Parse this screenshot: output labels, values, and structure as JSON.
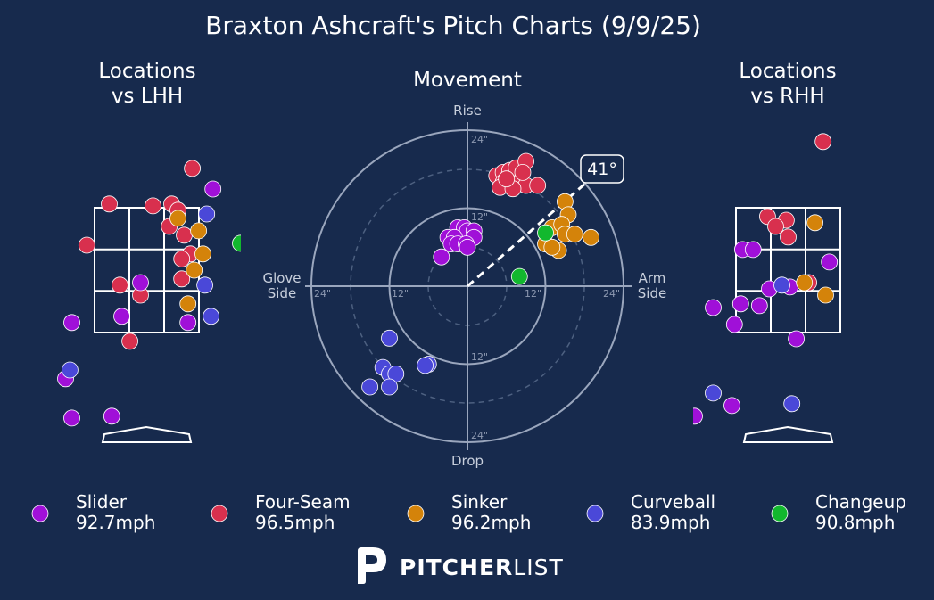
{
  "title": "Braxton Ashcraft's Pitch Charts (9/9/25)",
  "panels": {
    "lhh": {
      "title_line1": "Locations",
      "title_line2": "vs LHH"
    },
    "movement": {
      "title": "Movement"
    },
    "rhh": {
      "title_line1": "Locations",
      "title_line2": "vs RHH"
    }
  },
  "axis_labels": {
    "top": "Rise",
    "bottom": "Drop",
    "left_line1": "Glove",
    "left_line2": "Side",
    "right_line1": "Arm",
    "right_line2": "Side"
  },
  "ring_labels": {
    "top_24": "24\"",
    "top_12": "12\"",
    "bottom_12": "12\"",
    "bottom_24": "24\"",
    "left_24": "24\"",
    "left_12": "12\"",
    "right_12": "12\"",
    "right_24": "24\""
  },
  "arm_angle": {
    "label": "41°",
    "degrees": 41
  },
  "brand": {
    "bold": "PITCHER",
    "thin": "LIST"
  },
  "legend": [
    {
      "name": "Slider",
      "speed": "92.7mph",
      "color": "#a010d8"
    },
    {
      "name": "Four-Seam",
      "speed": "96.5mph",
      "color": "#d8304e"
    },
    {
      "name": "Sinker",
      "speed": "96.2mph",
      "color": "#d4830a"
    },
    {
      "name": "Curveball",
      "speed": "83.9mph",
      "color": "#4a48d8"
    },
    {
      "name": "Changeup",
      "speed": "90.8mph",
      "color": "#12b82e"
    }
  ],
  "colors": {
    "background": "#172a4d",
    "Slider": "#a010d8",
    "Four-Seam": "#d8304e",
    "Sinker": "#d4830a",
    "Curveball": "#4a48d8",
    "Changeup": "#12b82e"
  },
  "chart_data": [
    {
      "type": "scatter",
      "name": "Locations vs LHH",
      "units": "feet (plate_x, plate_z)",
      "strike_zone": {
        "x": [
          -0.83,
          0.83
        ],
        "z": [
          1.5,
          3.5
        ]
      },
      "points": [
        {
          "pitch": "Four-Seam",
          "x": 0.73,
          "z": 4.13
        },
        {
          "pitch": "Four-Seam",
          "x": -0.6,
          "z": 3.56
        },
        {
          "pitch": "Four-Seam",
          "x": 0.1,
          "z": 3.53
        },
        {
          "pitch": "Four-Seam",
          "x": 0.4,
          "z": 3.56
        },
        {
          "pitch": "Four-Seam",
          "x": 0.5,
          "z": 3.46
        },
        {
          "pitch": "Four-Seam",
          "x": 0.36,
          "z": 3.2
        },
        {
          "pitch": "Four-Seam",
          "x": 0.6,
          "z": 3.06
        },
        {
          "pitch": "Four-Seam",
          "x": -0.96,
          "z": 2.9
        },
        {
          "pitch": "Four-Seam",
          "x": 0.7,
          "z": 2.76
        },
        {
          "pitch": "Four-Seam",
          "x": 0.56,
          "z": 2.68
        },
        {
          "pitch": "Four-Seam",
          "x": -0.43,
          "z": 2.26
        },
        {
          "pitch": "Four-Seam",
          "x": 0.56,
          "z": 2.36
        },
        {
          "pitch": "Four-Seam",
          "x": -0.1,
          "z": 2.1
        },
        {
          "pitch": "Four-Seam",
          "x": -0.27,
          "z": 1.36
        },
        {
          "pitch": "Slider",
          "x": 1.06,
          "z": 3.8
        },
        {
          "pitch": "Slider",
          "x": -0.1,
          "z": 2.3
        },
        {
          "pitch": "Slider",
          "x": -0.4,
          "z": 1.76
        },
        {
          "pitch": "Slider",
          "x": 0.66,
          "z": 1.66
        },
        {
          "pitch": "Slider",
          "x": -1.2,
          "z": 1.66
        },
        {
          "pitch": "Slider",
          "x": -1.3,
          "z": 0.76
        },
        {
          "pitch": "Slider",
          "x": -1.2,
          "z": 0.13
        },
        {
          "pitch": "Slider",
          "x": -0.56,
          "z": 0.16
        },
        {
          "pitch": "Sinker",
          "x": 0.5,
          "z": 3.33
        },
        {
          "pitch": "Sinker",
          "x": 0.83,
          "z": 3.13
        },
        {
          "pitch": "Sinker",
          "x": 0.9,
          "z": 2.76
        },
        {
          "pitch": "Sinker",
          "x": 0.76,
          "z": 2.5
        },
        {
          "pitch": "Sinker",
          "x": 0.66,
          "z": 1.96
        },
        {
          "pitch": "Curveball",
          "x": 0.96,
          "z": 3.4
        },
        {
          "pitch": "Curveball",
          "x": 0.93,
          "z": 2.26
        },
        {
          "pitch": "Curveball",
          "x": 1.03,
          "z": 1.76
        },
        {
          "pitch": "Curveball",
          "x": -1.23,
          "z": 0.9
        },
        {
          "pitch": "Changeup",
          "x": 1.5,
          "z": 2.93
        }
      ]
    },
    {
      "type": "scatter",
      "name": "Movement",
      "units": "inches (horizontal break, induced vertical break)",
      "rings": [
        12,
        24
      ],
      "points": [
        {
          "pitch": "Four-Seam",
          "x": 4.5,
          "y": 17
        },
        {
          "pitch": "Four-Seam",
          "x": 5.5,
          "y": 17.5
        },
        {
          "pitch": "Four-Seam",
          "x": 6.5,
          "y": 17.8
        },
        {
          "pitch": "Four-Seam",
          "x": 7.5,
          "y": 18.2
        },
        {
          "pitch": "Four-Seam",
          "x": 9,
          "y": 19.2
        },
        {
          "pitch": "Four-Seam",
          "x": 5.5,
          "y": 16
        },
        {
          "pitch": "Four-Seam",
          "x": 6.5,
          "y": 15.5
        },
        {
          "pitch": "Four-Seam",
          "x": 8,
          "y": 16
        },
        {
          "pitch": "Four-Seam",
          "x": 9,
          "y": 15.5
        },
        {
          "pitch": "Four-Seam",
          "x": 10.8,
          "y": 15.5
        },
        {
          "pitch": "Four-Seam",
          "x": 5,
          "y": 15.2
        },
        {
          "pitch": "Four-Seam",
          "x": 7,
          "y": 15
        },
        {
          "pitch": "Four-Seam",
          "x": 6,
          "y": 16.5
        },
        {
          "pitch": "Four-Seam",
          "x": 8.5,
          "y": 17.5
        },
        {
          "pitch": "Slider",
          "x": -1.5,
          "y": 9
        },
        {
          "pitch": "Slider",
          "x": -0.5,
          "y": 9
        },
        {
          "pitch": "Slider",
          "x": 0,
          "y": 8.5
        },
        {
          "pitch": "Slider",
          "x": 1,
          "y": 8.5
        },
        {
          "pitch": "Slider",
          "x": -3,
          "y": 7.5
        },
        {
          "pitch": "Slider",
          "x": -2,
          "y": 7.5
        },
        {
          "pitch": "Slider",
          "x": 1,
          "y": 7.5
        },
        {
          "pitch": "Slider",
          "x": -2.5,
          "y": 6.5
        },
        {
          "pitch": "Slider",
          "x": -1.5,
          "y": 6.5
        },
        {
          "pitch": "Slider",
          "x": -0.2,
          "y": 6.5
        },
        {
          "pitch": "Slider",
          "x": 0,
          "y": 6
        },
        {
          "pitch": "Slider",
          "x": -4,
          "y": 4.5
        },
        {
          "pitch": "Sinker",
          "x": 15,
          "y": 13
        },
        {
          "pitch": "Sinker",
          "x": 15.5,
          "y": 11
        },
        {
          "pitch": "Sinker",
          "x": 13,
          "y": 9
        },
        {
          "pitch": "Sinker",
          "x": 14.5,
          "y": 9.5
        },
        {
          "pitch": "Sinker",
          "x": 15,
          "y": 8
        },
        {
          "pitch": "Sinker",
          "x": 16.5,
          "y": 8
        },
        {
          "pitch": "Sinker",
          "x": 19,
          "y": 7.5
        },
        {
          "pitch": "Sinker",
          "x": 12,
          "y": 6.5
        },
        {
          "pitch": "Sinker",
          "x": 14,
          "y": 5.5
        },
        {
          "pitch": "Sinker",
          "x": 13,
          "y": 6
        },
        {
          "pitch": "Curveball",
          "x": -12,
          "y": -8
        },
        {
          "pitch": "Curveball",
          "x": -13,
          "y": -12.5
        },
        {
          "pitch": "Curveball",
          "x": -12,
          "y": -13.5
        },
        {
          "pitch": "Curveball",
          "x": -11,
          "y": -13.5
        },
        {
          "pitch": "Curveball",
          "x": -6,
          "y": -12
        },
        {
          "pitch": "Curveball",
          "x": -6.5,
          "y": -12.2
        },
        {
          "pitch": "Curveball",
          "x": -15,
          "y": -15.5
        },
        {
          "pitch": "Curveball",
          "x": -12,
          "y": -15.5
        },
        {
          "pitch": "Changeup",
          "x": 12,
          "y": 8.2
        },
        {
          "pitch": "Changeup",
          "x": 8,
          "y": 1.5
        }
      ]
    },
    {
      "type": "scatter",
      "name": "Locations vs RHH",
      "units": "feet (plate_x, plate_z)",
      "strike_zone": {
        "x": [
          -0.83,
          0.83
        ],
        "z": [
          1.5,
          3.5
        ]
      },
      "points": [
        {
          "pitch": "Four-Seam",
          "x": 0.56,
          "z": 4.56
        },
        {
          "pitch": "Four-Seam",
          "x": -0.33,
          "z": 3.36
        },
        {
          "pitch": "Four-Seam",
          "x": -0.03,
          "z": 3.3
        },
        {
          "pitch": "Four-Seam",
          "x": -0.2,
          "z": 3.2
        },
        {
          "pitch": "Four-Seam",
          "x": 0,
          "z": 3.03
        },
        {
          "pitch": "Four-Seam",
          "x": 0.33,
          "z": 2.3
        },
        {
          "pitch": "Slider",
          "x": -0.73,
          "z": 2.83
        },
        {
          "pitch": "Slider",
          "x": -0.56,
          "z": 2.83
        },
        {
          "pitch": "Slider",
          "x": 0.66,
          "z": 2.63
        },
        {
          "pitch": "Slider",
          "x": 0.03,
          "z": 2.23
        },
        {
          "pitch": "Slider",
          "x": -0.3,
          "z": 2.2
        },
        {
          "pitch": "Slider",
          "x": -0.76,
          "z": 1.96
        },
        {
          "pitch": "Slider",
          "x": -0.46,
          "z": 1.93
        },
        {
          "pitch": "Slider",
          "x": -1.2,
          "z": 1.9
        },
        {
          "pitch": "Slider",
          "x": -0.86,
          "z": 1.63
        },
        {
          "pitch": "Slider",
          "x": 0.13,
          "z": 1.4
        },
        {
          "pitch": "Slider",
          "x": -0.9,
          "z": 0.33
        },
        {
          "pitch": "Slider",
          "x": -1.5,
          "z": 0.16
        },
        {
          "pitch": "Sinker",
          "x": 0.43,
          "z": 3.26
        },
        {
          "pitch": "Sinker",
          "x": 0.26,
          "z": 2.3
        },
        {
          "pitch": "Sinker",
          "x": 0.6,
          "z": 2.1
        },
        {
          "pitch": "Curveball",
          "x": -0.1,
          "z": 2.26
        },
        {
          "pitch": "Curveball",
          "x": -1.2,
          "z": 0.53
        },
        {
          "pitch": "Curveball",
          "x": 0.06,
          "z": 0.36
        }
      ]
    }
  ]
}
